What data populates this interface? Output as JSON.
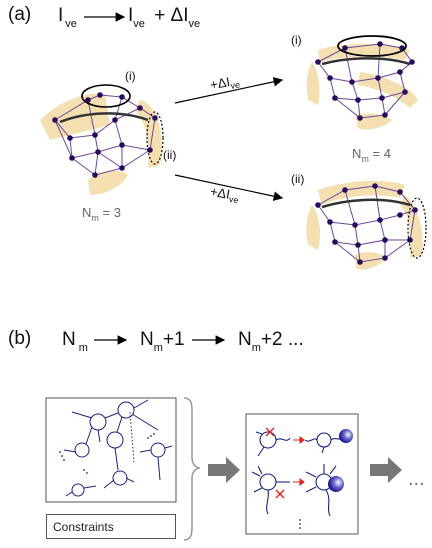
{
  "panel_a": {
    "label": "(a)",
    "equation": {
      "lhs": "I",
      "lhs_sub": "ve",
      "rhs": "I",
      "rhs_sub": "ve",
      "plus": "+ ΔI",
      "plus_sub": "ve"
    },
    "roman_i": "(i)",
    "roman_ii": "(ii)",
    "nm_left": {
      "text": "N",
      "sub": "m",
      "value": "= 3"
    },
    "nm_right": {
      "text": "N",
      "sub": "m",
      "value": "= 4"
    },
    "arrow_top_label": {
      "text": "+ΔI",
      "sub": "ve"
    },
    "arrow_bottom_label": {
      "text": "+ΔI",
      "sub": "ve"
    },
    "right_top_roman": "(i)",
    "right_bottom_roman": "(ii)"
  },
  "panel_b": {
    "label": "(b)",
    "seq_1": {
      "text": "N",
      "sub": "m"
    },
    "seq_2": {
      "text": "N",
      "sub": "m",
      "suffix": "+1"
    },
    "seq_3": {
      "text": "N",
      "sub": "m",
      "suffix": "+2 ..."
    },
    "constraints_label": "Constraints",
    "ellipsis": "..."
  },
  "colors": {
    "node": "#2a0a5e",
    "edge": "#6a4a9a",
    "highlight": "#f3dfb0",
    "arrow_gray": "#777777",
    "tree_blue": "#1a237e",
    "red_mark": "#e02020"
  }
}
